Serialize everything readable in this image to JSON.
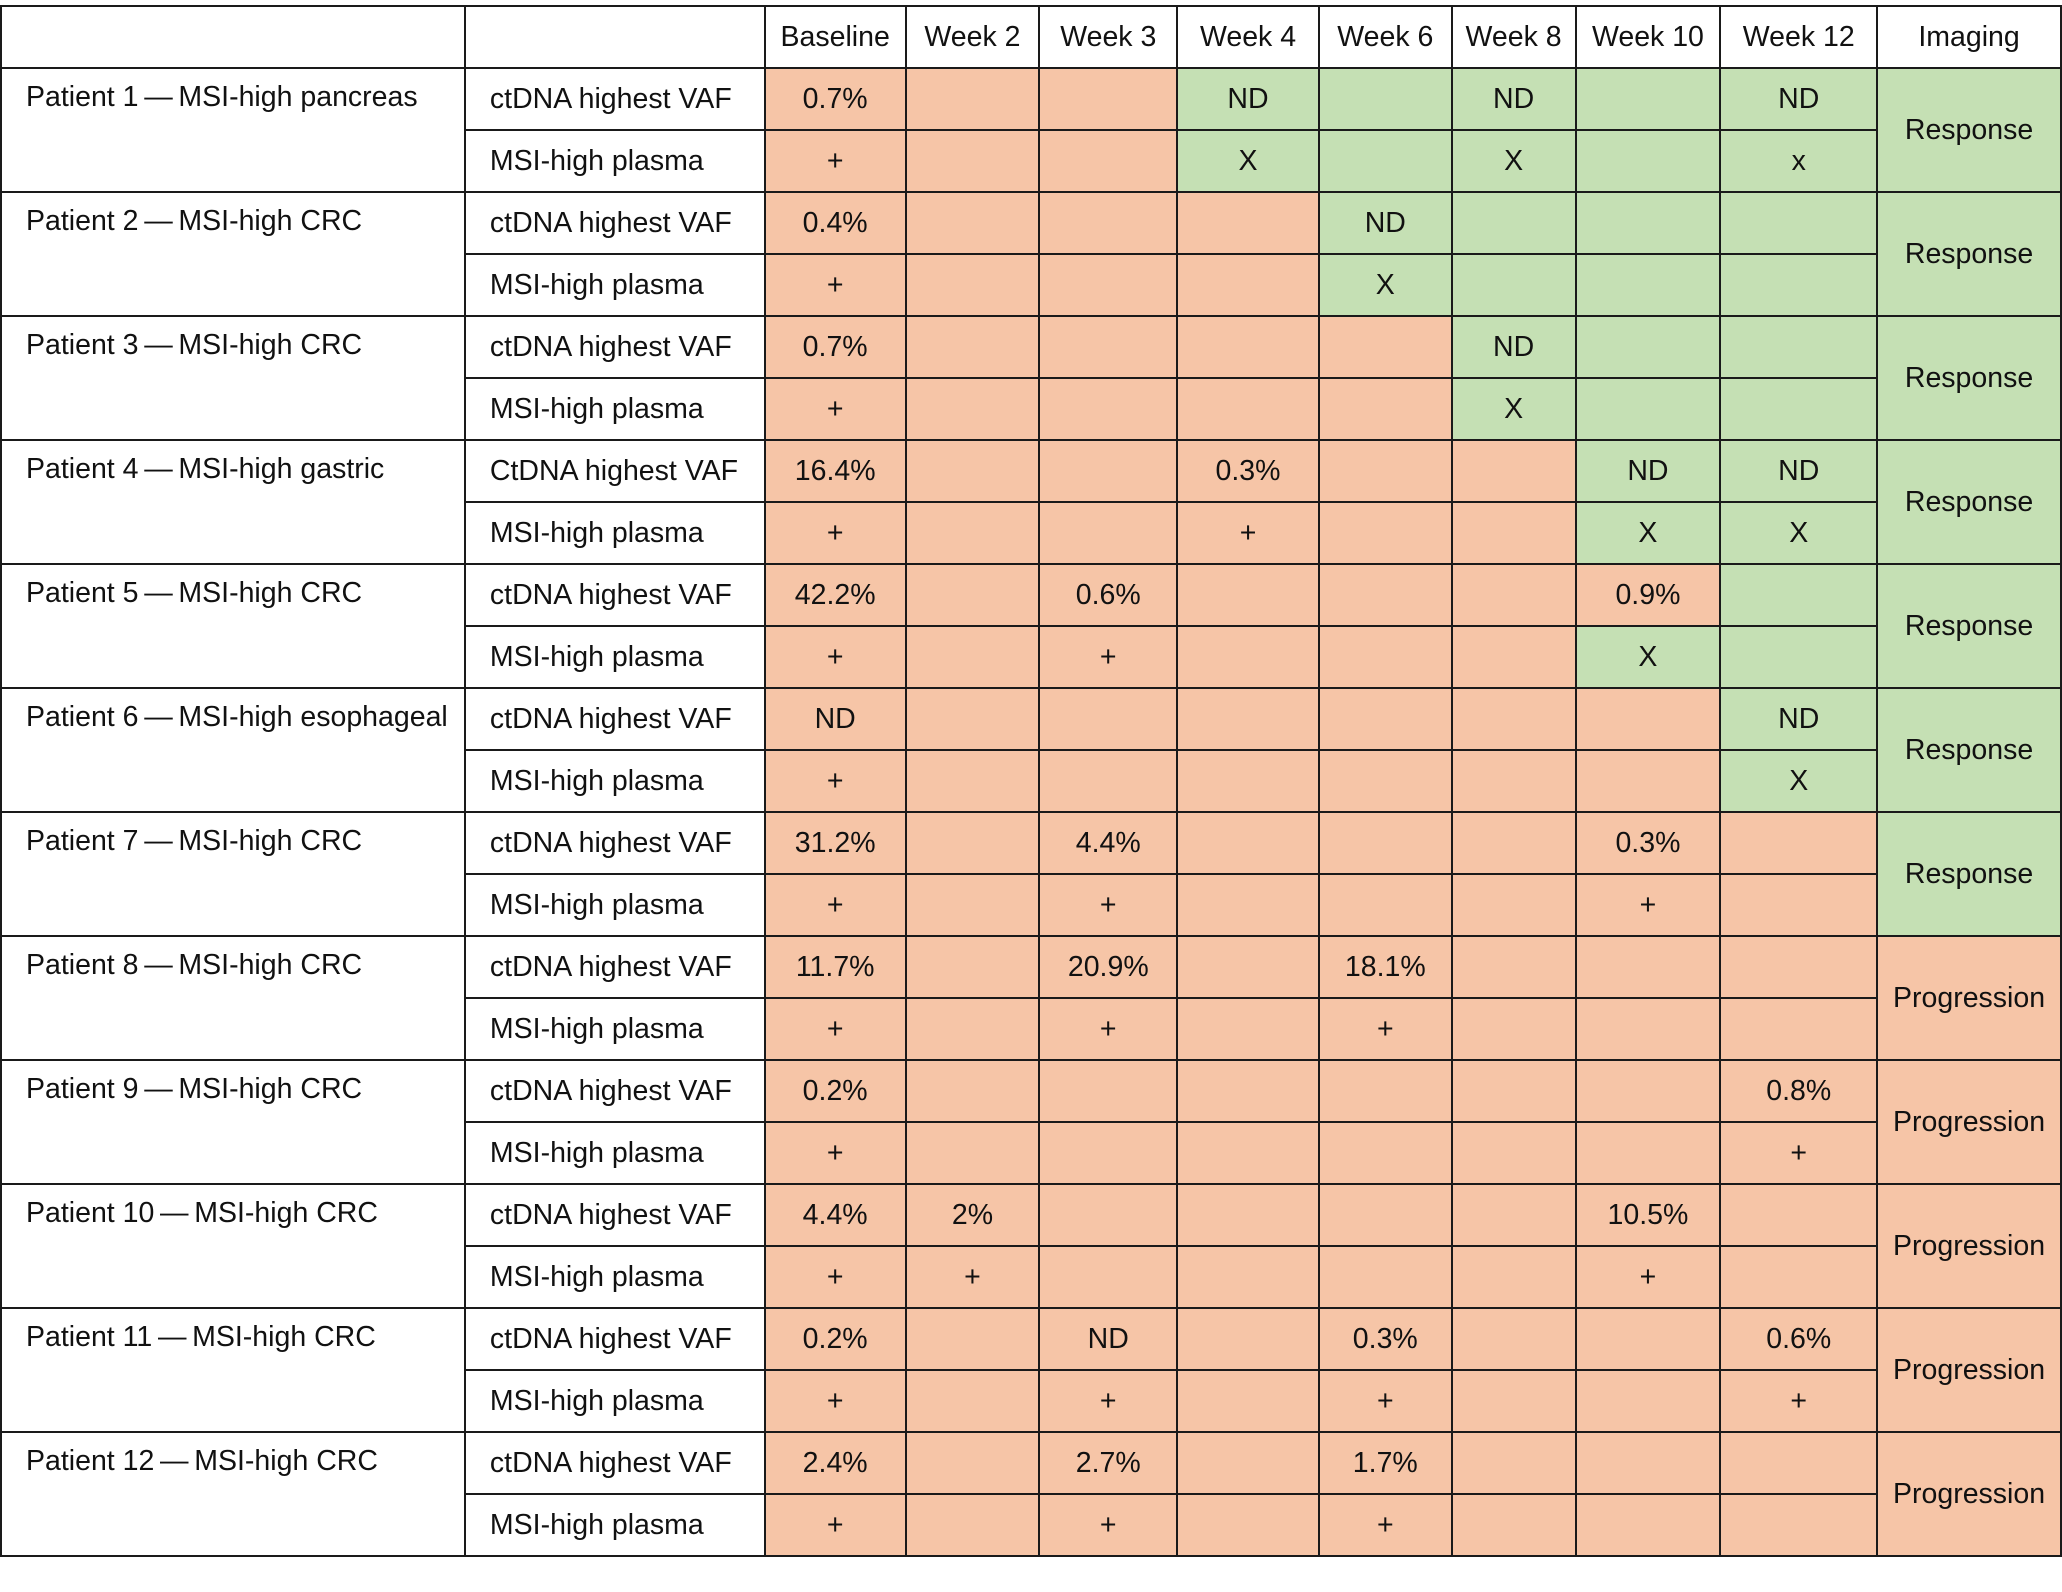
{
  "colors": {
    "red": "#f6c5a7",
    "green": "#c5e0b4"
  },
  "table": {
    "header": [
      "",
      "",
      "Baseline",
      "Week 2",
      "Week 3",
      "Week 4",
      "Week 6",
      "Week 8",
      "Week 10",
      "Week 12",
      "Imaging"
    ],
    "patients": [
      {
        "label": "Patient 1 — MSI-high pancreas",
        "imaging": "Response",
        "imaging_color": "green",
        "rows": [
          {
            "measure": "ctDNA highest VAF",
            "values": [
              "0.7%",
              "",
              "",
              "ND",
              "",
              "ND",
              "",
              "ND"
            ],
            "colors": [
              "red",
              "red",
              "red",
              "green",
              "green",
              "green",
              "green",
              "green"
            ]
          },
          {
            "measure": "MSI-high plasma",
            "values": [
              "+",
              "",
              "",
              "X",
              "",
              "X",
              "",
              "x"
            ],
            "colors": [
              "red",
              "red",
              "red",
              "green",
              "green",
              "green",
              "green",
              "green"
            ]
          }
        ]
      },
      {
        "label": "Patient 2 — MSI-high CRC",
        "imaging": "Response",
        "imaging_color": "green",
        "rows": [
          {
            "measure": "ctDNA highest VAF",
            "values": [
              "0.4%",
              "",
              "",
              "",
              "ND",
              "",
              "",
              ""
            ],
            "colors": [
              "red",
              "red",
              "red",
              "red",
              "green",
              "green",
              "green",
              "green"
            ]
          },
          {
            "measure": "MSI-high plasma",
            "values": [
              "+",
              "",
              "",
              "",
              "X",
              "",
              "",
              ""
            ],
            "colors": [
              "red",
              "red",
              "red",
              "red",
              "green",
              "green",
              "green",
              "green"
            ]
          }
        ]
      },
      {
        "label": "Patient 3 — MSI-high CRC",
        "imaging": "Response",
        "imaging_color": "green",
        "rows": [
          {
            "measure": "ctDNA highest VAF",
            "values": [
              "0.7%",
              "",
              "",
              "",
              "",
              "ND",
              "",
              ""
            ],
            "colors": [
              "red",
              "red",
              "red",
              "red",
              "red",
              "green",
              "green",
              "green"
            ]
          },
          {
            "measure": "MSI-high plasma",
            "values": [
              "+",
              "",
              "",
              "",
              "",
              "X",
              "",
              ""
            ],
            "colors": [
              "red",
              "red",
              "red",
              "red",
              "red",
              "green",
              "green",
              "green"
            ]
          }
        ]
      },
      {
        "label": "Patient 4 — MSI-high gastric",
        "imaging": "Response",
        "imaging_color": "green",
        "rows": [
          {
            "measure": "CtDNA highest VAF",
            "values": [
              "16.4%",
              "",
              "",
              "0.3%",
              "",
              "",
              "ND",
              "ND"
            ],
            "colors": [
              "red",
              "red",
              "red",
              "red",
              "red",
              "red",
              "green",
              "green"
            ]
          },
          {
            "measure": "MSI-high plasma",
            "values": [
              "+",
              "",
              "",
              "+",
              "",
              "",
              "X",
              "X"
            ],
            "colors": [
              "red",
              "red",
              "red",
              "red",
              "red",
              "red",
              "green",
              "green"
            ]
          }
        ]
      },
      {
        "label": "Patient 5 — MSI-high CRC",
        "imaging": "Response",
        "imaging_color": "green",
        "rows": [
          {
            "measure": "ctDNA highest VAF",
            "values": [
              "42.2%",
              "",
              "0.6%",
              "",
              "",
              "",
              "0.9%",
              ""
            ],
            "colors": [
              "red",
              "red",
              "red",
              "red",
              "red",
              "red",
              "red",
              "green"
            ]
          },
          {
            "measure": "MSI-high plasma",
            "values": [
              "+",
              "",
              "+",
              "",
              "",
              "",
              "X",
              ""
            ],
            "colors": [
              "red",
              "red",
              "red",
              "red",
              "red",
              "red",
              "green",
              "green"
            ]
          }
        ]
      },
      {
        "label": "Patient 6 — MSI-high esophageal",
        "imaging": "Response",
        "imaging_color": "green",
        "rows": [
          {
            "measure": "ctDNA highest VAF",
            "values": [
              "ND",
              "",
              "",
              "",
              "",
              "",
              "",
              "ND"
            ],
            "colors": [
              "red",
              "red",
              "red",
              "red",
              "red",
              "red",
              "red",
              "green"
            ]
          },
          {
            "measure": "MSI-high plasma",
            "values": [
              "+",
              "",
              "",
              "",
              "",
              "",
              "",
              "X"
            ],
            "colors": [
              "red",
              "red",
              "red",
              "red",
              "red",
              "red",
              "red",
              "green"
            ]
          }
        ]
      },
      {
        "label": "Patient 7 — MSI-high CRC",
        "imaging": "Response",
        "imaging_color": "green",
        "rows": [
          {
            "measure": "ctDNA highest VAF",
            "values": [
              "31.2%",
              "",
              "4.4%",
              "",
              "",
              "",
              "0.3%",
              ""
            ],
            "colors": [
              "red",
              "red",
              "red",
              "red",
              "red",
              "red",
              "red",
              "red"
            ]
          },
          {
            "measure": "MSI-high plasma",
            "values": [
              "+",
              "",
              "+",
              "",
              "",
              "",
              "+",
              ""
            ],
            "colors": [
              "red",
              "red",
              "red",
              "red",
              "red",
              "red",
              "red",
              "red"
            ]
          }
        ]
      },
      {
        "label": "Patient 8 — MSI-high CRC",
        "imaging": "Progression",
        "imaging_color": "red",
        "rows": [
          {
            "measure": "ctDNA highest VAF",
            "values": [
              "11.7%",
              "",
              "20.9%",
              "",
              "18.1%",
              "",
              "",
              ""
            ],
            "colors": [
              "red",
              "red",
              "red",
              "red",
              "red",
              "red",
              "red",
              "red"
            ]
          },
          {
            "measure": "MSI-high plasma",
            "values": [
              "+",
              "",
              "+",
              "",
              "+",
              "",
              "",
              ""
            ],
            "colors": [
              "red",
              "red",
              "red",
              "red",
              "red",
              "red",
              "red",
              "red"
            ]
          }
        ]
      },
      {
        "label": "Patient 9 — MSI-high CRC",
        "imaging": "Progression",
        "imaging_color": "red",
        "rows": [
          {
            "measure": "ctDNA highest VAF",
            "values": [
              "0.2%",
              "",
              "",
              "",
              "",
              "",
              "",
              "0.8%"
            ],
            "colors": [
              "red",
              "red",
              "red",
              "red",
              "red",
              "red",
              "red",
              "red"
            ]
          },
          {
            "measure": "MSI-high plasma",
            "values": [
              "+",
              "",
              "",
              "",
              "",
              "",
              "",
              "+"
            ],
            "colors": [
              "red",
              "red",
              "red",
              "red",
              "red",
              "red",
              "red",
              "red"
            ]
          }
        ]
      },
      {
        "label": "Patient 10 — MSI-high CRC",
        "imaging": "Progression",
        "imaging_color": "red",
        "rows": [
          {
            "measure": "ctDNA highest VAF",
            "values": [
              "4.4%",
              "2%",
              "",
              "",
              "",
              "",
              "10.5%",
              ""
            ],
            "colors": [
              "red",
              "red",
              "red",
              "red",
              "red",
              "red",
              "red",
              "red"
            ]
          },
          {
            "measure": "MSI-high plasma",
            "values": [
              "+",
              "+",
              "",
              "",
              "",
              "",
              "+",
              ""
            ],
            "colors": [
              "red",
              "red",
              "red",
              "red",
              "red",
              "red",
              "red",
              "red"
            ]
          }
        ]
      },
      {
        "label": "Patient 11 — MSI-high CRC",
        "imaging": "Progression",
        "imaging_color": "red",
        "rows": [
          {
            "measure": "ctDNA highest VAF",
            "values": [
              "0.2%",
              "",
              "ND",
              "",
              "0.3%",
              "",
              "",
              "0.6%"
            ],
            "colors": [
              "red",
              "red",
              "red",
              "red",
              "red",
              "red",
              "red",
              "red"
            ]
          },
          {
            "measure": "MSI-high plasma",
            "values": [
              "+",
              "",
              "+",
              "",
              "+",
              "",
              "",
              "+"
            ],
            "colors": [
              "red",
              "red",
              "red",
              "red",
              "red",
              "red",
              "red",
              "red"
            ]
          }
        ]
      },
      {
        "label": "Patient 12 — MSI-high CRC",
        "imaging": "Progression",
        "imaging_color": "red",
        "rows": [
          {
            "measure": "ctDNA highest VAF",
            "values": [
              "2.4%",
              "",
              "2.7%",
              "",
              "1.7%",
              "",
              "",
              ""
            ],
            "colors": [
              "red",
              "red",
              "red",
              "red",
              "red",
              "red",
              "red",
              "red"
            ]
          },
          {
            "measure": "MSI-high plasma",
            "values": [
              "+",
              "",
              "+",
              "",
              "+",
              "",
              "",
              ""
            ],
            "colors": [
              "red",
              "red",
              "red",
              "red",
              "red",
              "red",
              "red",
              "red"
            ]
          }
        ]
      }
    ]
  }
}
